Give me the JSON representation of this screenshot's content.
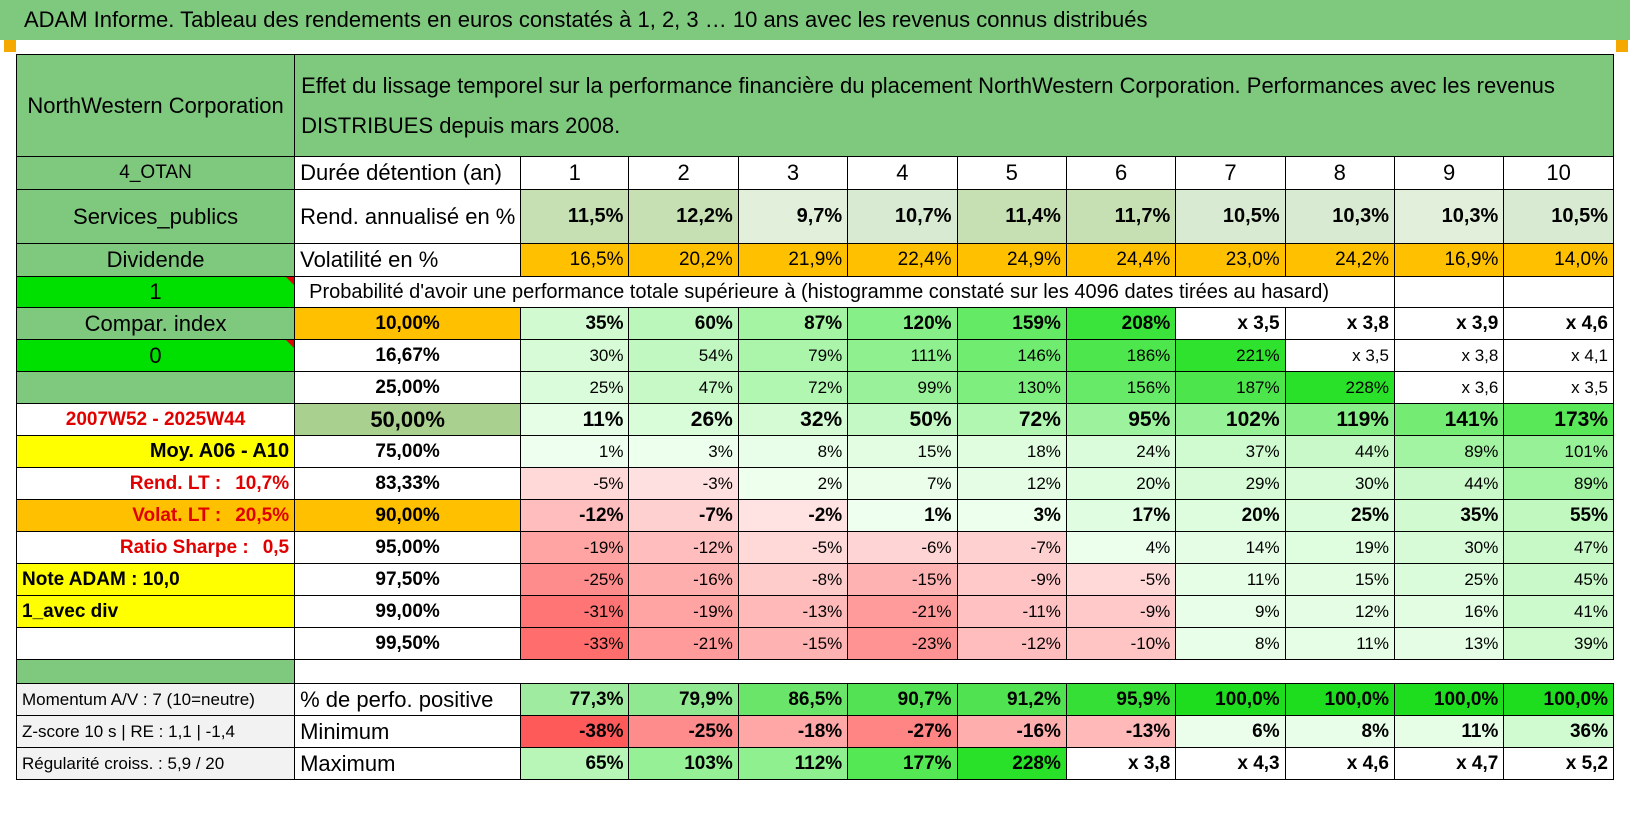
{
  "title": "ADAM Informe. Tableau des rendements en euros constatés à 1, 2, 3 … 10 ans avec les revenus connus distribués",
  "header": {
    "company": "NorthWestern Corporation",
    "description": "Effet du lissage temporel sur la performance financière du placement NorthWestern Corporation. Performances avec les revenus DISTRIBUES depuis mars 2008."
  },
  "side": {
    "otan": "4_OTAN",
    "sector": "Services_publics",
    "dividende": "Dividende",
    "one": "1",
    "compar": "Compar. index",
    "zero": "0",
    "period": "2007W52 - 2025W44",
    "moy": "Moy. A06 - A10",
    "rend_lt_label": "Rend. LT :",
    "rend_lt_value": "10,7%",
    "volat_lt_label": "Volat. LT :",
    "volat_lt_value": "20,5%",
    "sharpe_label": "Ratio Sharpe :",
    "sharpe_value": "0,5",
    "note": "Note ADAM : 10,0",
    "avec_div": "1_avec div",
    "momentum": "Momentum A/V : 7 (10=neutre)",
    "zscore": "Z-score 10 s | RE : 1,1 | -1,4",
    "regularite": "Régularité croiss. : 5,9 / 20"
  },
  "labels": {
    "duree": "Durée détention (an)",
    "rend": "Rend. annualisé en %",
    "volat": "Volatilité en %",
    "proba": "Probabilité d'avoir une performance totale supérieure à (histogramme constaté sur les 4096 dates tirées au hasard)",
    "pct_pos": "% de perfo. positive",
    "minimum": "Minimum",
    "maximum": "Maximum"
  },
  "years": [
    "1",
    "2",
    "3",
    "4",
    "5",
    "6",
    "7",
    "8",
    "9",
    "10"
  ],
  "rend": [
    "11,5%",
    "12,2%",
    "9,7%",
    "10,7%",
    "11,4%",
    "11,7%",
    "10,5%",
    "10,3%",
    "10,3%",
    "10,5%"
  ],
  "volat": [
    "16,5%",
    "20,2%",
    "21,9%",
    "22,4%",
    "24,9%",
    "24,4%",
    "23,0%",
    "24,2%",
    "16,9%",
    "14,0%"
  ],
  "quantiles": [
    {
      "q": "10,00%",
      "vals": [
        "35%",
        "60%",
        "87%",
        "120%",
        "159%",
        "208%",
        "x 3,5",
        "x 3,8",
        "x 3,9",
        "x 4,6"
      ]
    },
    {
      "q": "16,67%",
      "vals": [
        "30%",
        "54%",
        "79%",
        "111%",
        "146%",
        "186%",
        "221%",
        "x 3,5",
        "x 3,8",
        "x 4,1"
      ]
    },
    {
      "q": "25,00%",
      "vals": [
        "25%",
        "47%",
        "72%",
        "99%",
        "130%",
        "156%",
        "187%",
        "228%",
        "x 3,6",
        "x 3,5"
      ]
    },
    {
      "q": "50,00%",
      "vals": [
        "11%",
        "26%",
        "32%",
        "50%",
        "72%",
        "95%",
        "102%",
        "119%",
        "141%",
        "173%"
      ]
    },
    {
      "q": "75,00%",
      "vals": [
        "1%",
        "3%",
        "8%",
        "15%",
        "18%",
        "24%",
        "37%",
        "44%",
        "89%",
        "101%"
      ]
    },
    {
      "q": "83,33%",
      "vals": [
        "-5%",
        "-3%",
        "2%",
        "7%",
        "12%",
        "20%",
        "29%",
        "30%",
        "44%",
        "89%"
      ]
    },
    {
      "q": "90,00%",
      "vals": [
        "-12%",
        "-7%",
        "-2%",
        "1%",
        "3%",
        "17%",
        "20%",
        "25%",
        "35%",
        "55%"
      ]
    },
    {
      "q": "95,00%",
      "vals": [
        "-19%",
        "-12%",
        "-5%",
        "-6%",
        "-7%",
        "4%",
        "14%",
        "19%",
        "30%",
        "47%"
      ]
    },
    {
      "q": "97,50%",
      "vals": [
        "-25%",
        "-16%",
        "-8%",
        "-15%",
        "-9%",
        "-5%",
        "11%",
        "15%",
        "25%",
        "45%"
      ]
    },
    {
      "q": "99,00%",
      "vals": [
        "-31%",
        "-19%",
        "-13%",
        "-21%",
        "-11%",
        "-9%",
        "9%",
        "12%",
        "16%",
        "41%"
      ]
    },
    {
      "q": "99,50%",
      "vals": [
        "-33%",
        "-21%",
        "-15%",
        "-23%",
        "-12%",
        "-10%",
        "8%",
        "11%",
        "13%",
        "39%"
      ]
    }
  ],
  "pct_pos": [
    "77,3%",
    "79,9%",
    "86,5%",
    "90,7%",
    "91,2%",
    "95,9%",
    "100,0%",
    "100,0%",
    "100,0%",
    "100,0%"
  ],
  "minimum": [
    "-38%",
    "-25%",
    "-18%",
    "-27%",
    "-16%",
    "-13%",
    "6%",
    "8%",
    "11%",
    "36%"
  ],
  "maximum": [
    "65%",
    "103%",
    "112%",
    "177%",
    "228%",
    "x 3,8",
    "x 4,3",
    "x 4,6",
    "x 4,7",
    "x 5,2"
  ],
  "colors": {
    "title_green": "#7fc97f",
    "orange": "#ffc000",
    "yellow": "#ffff00",
    "bright_green": "#00e000",
    "red_text": "#e00000"
  }
}
